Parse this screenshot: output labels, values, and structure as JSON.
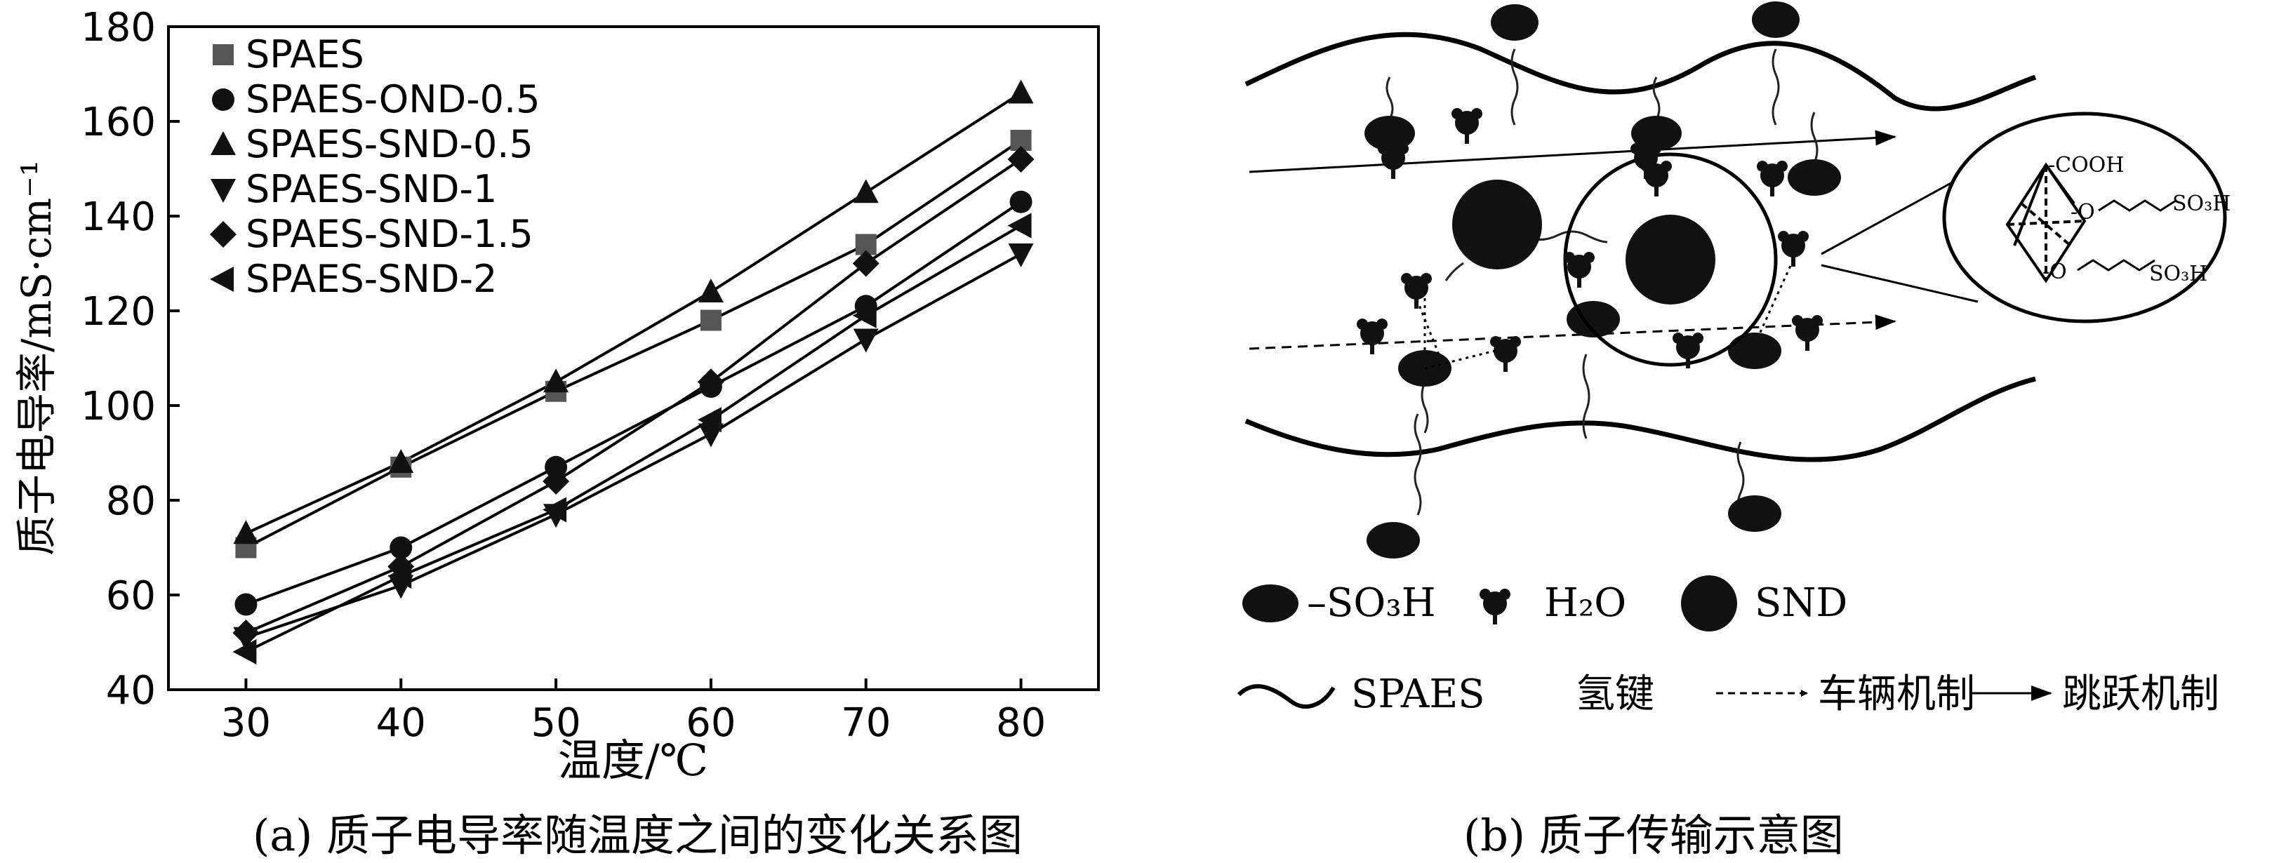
{
  "chart_data": {
    "type": "line",
    "xlabel": "温度/℃",
    "ylabel": "质子电导率/mS·cm⁻¹",
    "x": [
      30,
      40,
      50,
      60,
      70,
      80
    ],
    "xlim": [
      25,
      85
    ],
    "ylim": [
      40,
      180
    ],
    "xticks": [
      "30",
      "40",
      "50",
      "60",
      "70",
      "80"
    ],
    "yticks": [
      "40",
      "60",
      "80",
      "100",
      "120",
      "140",
      "160",
      "180"
    ],
    "grid": false,
    "legend_position": "top-left",
    "series": [
      {
        "name": "SPAES",
        "marker": "square",
        "color": "#555555",
        "values": [
          70,
          87,
          103,
          118,
          134,
          156
        ]
      },
      {
        "name": "SPAES-OND-0.5",
        "marker": "circle",
        "color": "#111111",
        "values": [
          58,
          70,
          87,
          104,
          121,
          143
        ]
      },
      {
        "name": "SPAES-SND-0.5",
        "marker": "triangle-up",
        "color": "#111111",
        "values": [
          73,
          88,
          105,
          124,
          145,
          166
        ]
      },
      {
        "name": "SPAES-SND-1",
        "marker": "triangle-down",
        "color": "#111111",
        "values": [
          51,
          62,
          77,
          94,
          114,
          132
        ]
      },
      {
        "name": "SPAES-SND-1.5",
        "marker": "diamond",
        "color": "#111111",
        "values": [
          52,
          66,
          84,
          105,
          130,
          152
        ]
      },
      {
        "name": "SPAES-SND-2",
        "marker": "triangle-left",
        "color": "#111111",
        "values": [
          48,
          64,
          78,
          97,
          119,
          138
        ]
      }
    ]
  },
  "captions": {
    "a": "(a) 质子电导率随温度之间的变化关系图",
    "b": "(b) 质子传输示意图"
  },
  "diagram": {
    "legend": {
      "so3h": "–SO₃H",
      "h2o": "H₂O",
      "snd": "SND",
      "spaes": "SPAES",
      "hbond": "氢键",
      "vehicle": "车辆机制",
      "hopping": "跳跃机制"
    },
    "inset": {
      "cooh": "-COOH",
      "o1": "-O",
      "o2": "-O",
      "so3h_1": "SO₃H",
      "so3h_2": "SO₃H"
    }
  }
}
